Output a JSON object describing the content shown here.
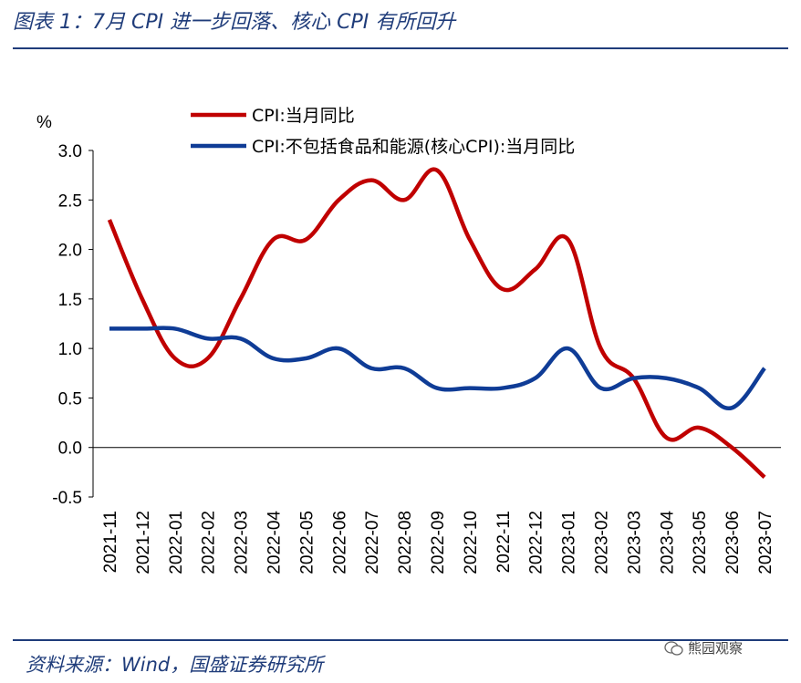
{
  "header": {
    "title": "图表 1：7月 CPI 进一步回落、核心 CPI 有所回升"
  },
  "footer": {
    "source": "资料来源：Wind，国盛证券研究所",
    "watermark": "熊园观察"
  },
  "chart_data": {
    "type": "line",
    "ylabel": "%",
    "ylim": [
      -0.5,
      3.0
    ],
    "yticks": [
      "3.0",
      "2.5",
      "2.0",
      "1.5",
      "1.0",
      "0.5",
      "0.0",
      "-0.5"
    ],
    "categories": [
      "2021-11",
      "2021-12",
      "2022-01",
      "2022-02",
      "2022-03",
      "2022-04",
      "2022-05",
      "2022-06",
      "2022-07",
      "2022-08",
      "2022-09",
      "2022-10",
      "2022-11",
      "2022-12",
      "2023-01",
      "2023-02",
      "2023-03",
      "2023-04",
      "2023-05",
      "2023-06",
      "2023-07"
    ],
    "legend_position": "top-center",
    "series": [
      {
        "name": "CPI:当月同比",
        "color": "#c00000",
        "values": [
          2.3,
          1.5,
          0.9,
          0.9,
          1.5,
          2.1,
          2.1,
          2.5,
          2.7,
          2.5,
          2.8,
          2.1,
          1.6,
          1.8,
          2.1,
          1.0,
          0.7,
          0.1,
          0.2,
          0.0,
          -0.3
        ]
      },
      {
        "name": "CPI:不包括食品和能源(核心CPI):当月同比",
        "color": "#0f3c96",
        "values": [
          1.2,
          1.2,
          1.2,
          1.1,
          1.1,
          0.9,
          0.9,
          1.0,
          0.8,
          0.8,
          0.6,
          0.6,
          0.6,
          0.7,
          1.0,
          0.6,
          0.7,
          0.7,
          0.6,
          0.4,
          0.8
        ]
      }
    ]
  }
}
